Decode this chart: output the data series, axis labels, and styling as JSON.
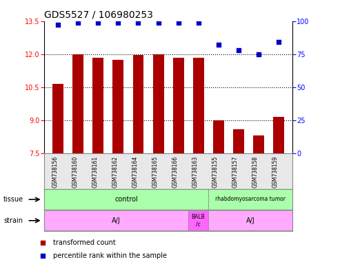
{
  "title": "GDS5527 / 106980253",
  "samples": [
    "GSM738156",
    "GSM738160",
    "GSM738161",
    "GSM738162",
    "GSM738164",
    "GSM738165",
    "GSM738166",
    "GSM738163",
    "GSM738155",
    "GSM738157",
    "GSM738158",
    "GSM738159"
  ],
  "bar_values": [
    10.65,
    12.0,
    11.85,
    11.75,
    11.95,
    12.0,
    11.85,
    11.85,
    9.0,
    8.6,
    8.3,
    9.15
  ],
  "scatter_values": [
    97,
    99,
    99,
    99,
    99,
    99,
    99,
    99,
    82,
    78,
    75,
    84
  ],
  "ylim_left": [
    7.5,
    13.5
  ],
  "ylim_right": [
    0,
    100
  ],
  "yticks_left": [
    7.5,
    9.0,
    10.5,
    12.0,
    13.5
  ],
  "yticks_right": [
    0,
    25,
    50,
    75,
    100
  ],
  "bar_color": "#aa0000",
  "scatter_color": "#0000cc",
  "bar_width": 0.55,
  "xlim": [
    -0.7,
    11.7
  ],
  "control_end_idx": 7.5,
  "balb_start_idx": 6.5,
  "balb_end_idx": 7.5,
  "tissue_control_color": "#aaffaa",
  "tissue_rhabdo_color": "#aaffaa",
  "strain_aj_color": "#ffaaff",
  "strain_balb_color": "#ff66ff",
  "bg_color": "#e8e8e8",
  "grid_color": "black",
  "label_fontsize": 7,
  "tick_fontsize": 7,
  "title_fontsize": 10
}
